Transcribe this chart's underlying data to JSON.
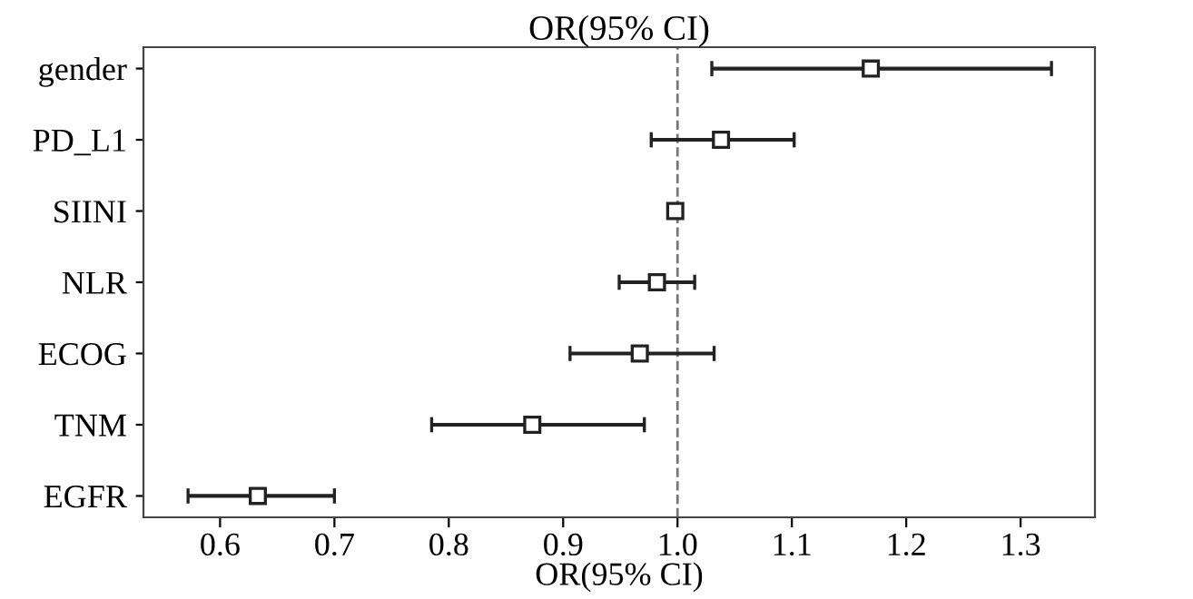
{
  "chart_data": {
    "type": "scatter",
    "orientation": "horizontal",
    "title": "OR(95% CI)",
    "xlabel": "OR(95% CI)",
    "categories": [
      "gender",
      "PD_L1",
      "SIINI",
      "NLR",
      "ECOG",
      "TNM",
      "EGFR"
    ],
    "values": [
      1.169,
      1.038,
      0.998,
      0.982,
      0.967,
      0.873,
      0.633
    ],
    "errors": [
      [
        1.03,
        1.327
      ],
      [
        0.977,
        1.102
      ],
      null,
      [
        0.949,
        1.015
      ],
      [
        0.906,
        1.032
      ],
      [
        0.785,
        0.971
      ],
      [
        0.572,
        0.7
      ]
    ],
    "color": "#222222",
    "marker": "square",
    "xlim": [
      0.533,
      1.365
    ],
    "xticks": [
      {
        "value": 0.6,
        "label": "0.6"
      },
      {
        "value": 0.7,
        "label": "0.7"
      },
      {
        "value": 0.8,
        "label": "0.8"
      },
      {
        "value": 0.9,
        "label": "0.9"
      },
      {
        "value": 1.0,
        "label": "1.0"
      },
      {
        "value": 1.1,
        "label": "1.1"
      },
      {
        "value": 1.2,
        "label": "1.2"
      },
      {
        "value": 1.3,
        "label": "1.3"
      }
    ],
    "ref_lines": [
      {
        "axis": "x",
        "value": 1.0,
        "color": "#777777",
        "line_style": "dashed"
      }
    ],
    "grid": false
  }
}
